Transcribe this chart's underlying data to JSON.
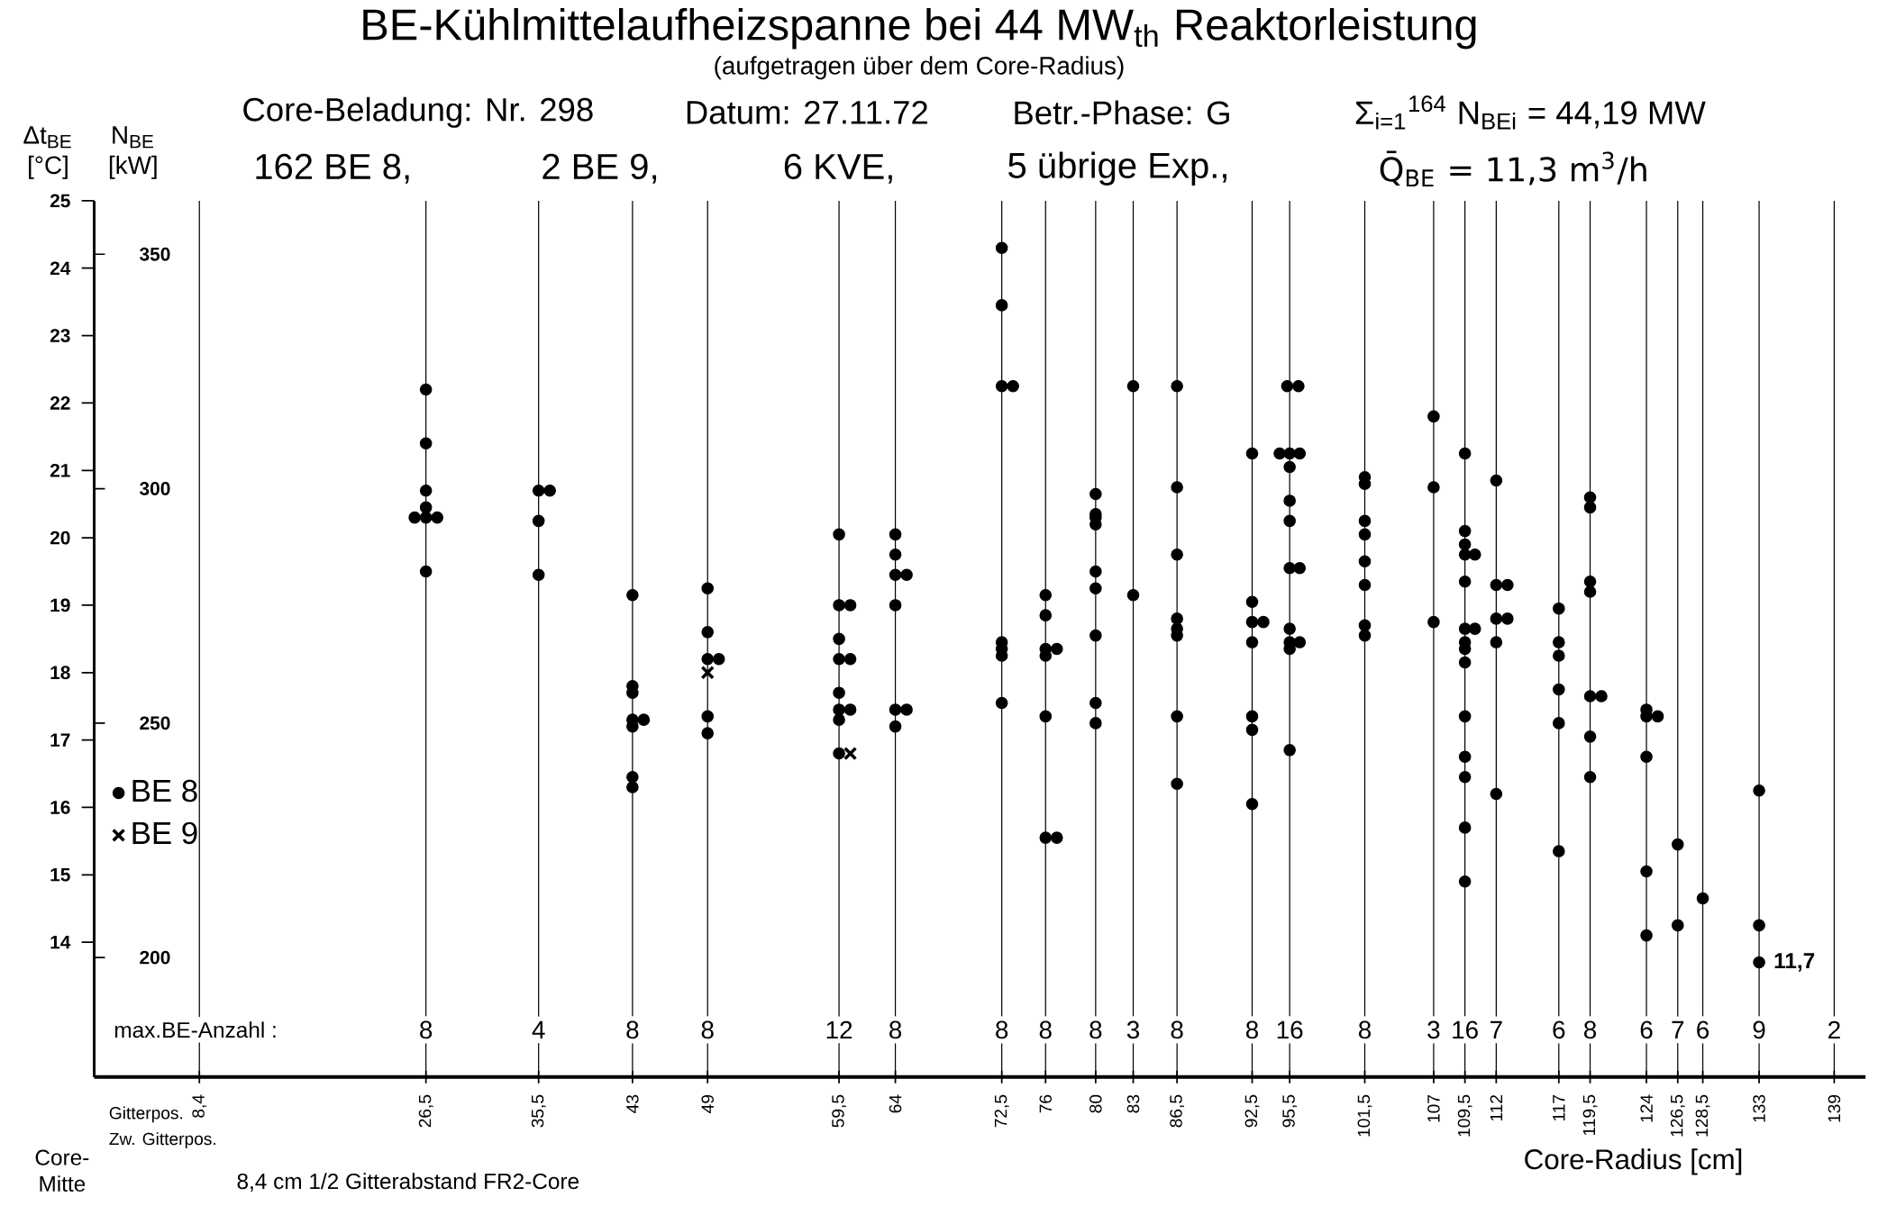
{
  "chart_data": {
    "type": "scatter",
    "title": "BE-Kühlmittelaufheizspanne bei 44 MW$_{th}$ Reaktorleistung",
    "subtitle": "(aufgetragen über dem Core-Radius)",
    "xlabel": "Core-Radius [cm]",
    "ylabel": "Δt$_{BE}$ [°C]",
    "y2label": "N$_{BE}$ [kW]",
    "xlim": [
      0,
      141.5
    ],
    "ylim": [
      12,
      25
    ],
    "y2lim": [
      174.5,
      361.4
    ],
    "xticks": [
      {
        "value": 8.4,
        "label": "8,4"
      },
      {
        "value": 26.5,
        "label": "26,5"
      },
      {
        "value": 35.5,
        "label": "35,5"
      },
      43,
      49,
      {
        "value": 59.5,
        "label": "59,5"
      },
      64,
      {
        "value": 72.5,
        "label": "72,5"
      },
      76,
      80,
      83,
      {
        "value": 86.5,
        "label": "86,5"
      },
      {
        "value": 92.5,
        "label": "92,5"
      },
      {
        "value": 95.5,
        "label": "95,5"
      },
      {
        "value": 101.5,
        "label": "101,5"
      },
      107,
      {
        "value": 109.5,
        "label": "109,5"
      },
      112,
      117,
      {
        "value": 119.5,
        "label": "119,5"
      },
      124,
      {
        "value": 126.5,
        "label": "126,5"
      },
      {
        "value": 128.5,
        "label": "128,5"
      },
      133,
      139
    ],
    "yticks": [
      14,
      15,
      16,
      17,
      18,
      19,
      20,
      21,
      22,
      23,
      24,
      25
    ],
    "y2ticks": [
      200,
      250,
      300,
      350
    ],
    "grid": "x",
    "legend": "left",
    "series": [
      {
        "name": "BE 8",
        "color": "#000000",
        "marker": "circle",
        "x": [
          26.5,
          26.5,
          26.5,
          26.5,
          25.6,
          26.5,
          27.4,
          26.5,
          35.5,
          36.4,
          35.5,
          35.5,
          43,
          43,
          43,
          43,
          43.9,
          43,
          43,
          43,
          49,
          49,
          49,
          49.9,
          49,
          49,
          59.5,
          59.5,
          60.4,
          59.5,
          59.5,
          60.4,
          59.5,
          59.5,
          60.4,
          59.5,
          59.5,
          64,
          64,
          64,
          64.9,
          64,
          64,
          64.9,
          64,
          72.5,
          72.5,
          72.5,
          73.4,
          72.5,
          72.5,
          72.5,
          72.5,
          76,
          76,
          76,
          76.9,
          76,
          76,
          76,
          76.9,
          80,
          80,
          80,
          80,
          80,
          80,
          80,
          80,
          80,
          83,
          83,
          86.5,
          86.5,
          86.5,
          86.5,
          86.5,
          86.5,
          86.5,
          86.5,
          92.5,
          92.5,
          92.5,
          93.4,
          92.5,
          92.5,
          92.5,
          92.5,
          95.3,
          96.2,
          94.7,
          95.5,
          96.3,
          95.5,
          95.5,
          95.5,
          95.5,
          96.3,
          95.5,
          95.5,
          96.3,
          95.5,
          95.5,
          101.5,
          101.5,
          101.5,
          101.5,
          101.5,
          101.5,
          101.5,
          101.5,
          107,
          107,
          107,
          109.5,
          109.5,
          109.5,
          109.5,
          110.3,
          109.5,
          109.5,
          110.3,
          109.5,
          109.5,
          109.5,
          109.5,
          109.5,
          109.5,
          109.5,
          109.5,
          112,
          112,
          112.9,
          112,
          112.9,
          112,
          112,
          117,
          117,
          117,
          117,
          117,
          117,
          119.5,
          119.5,
          119.5,
          119.5,
          119.5,
          120.4,
          119.5,
          119.5,
          124,
          124,
          124.9,
          124,
          124,
          124,
          126.5,
          126.5,
          128.5,
          133,
          133,
          133
        ],
        "values": [
          22.2,
          21.4,
          20.7,
          20.45,
          20.3,
          20.3,
          20.3,
          19.5,
          20.7,
          20.7,
          20.25,
          19.45,
          19.15,
          17.8,
          17.7,
          17.3,
          17.3,
          17.2,
          16.45,
          16.3,
          19.25,
          18.6,
          18.2,
          18.2,
          17.35,
          17.1,
          20.05,
          19.0,
          19.0,
          18.5,
          18.2,
          18.2,
          17.7,
          17.45,
          17.45,
          17.3,
          16.8,
          20.05,
          19.75,
          19.45,
          19.45,
          19.0,
          17.45,
          17.45,
          17.2,
          24.3,
          23.45,
          22.25,
          22.25,
          18.45,
          18.35,
          18.25,
          17.55,
          19.15,
          18.85,
          18.35,
          18.35,
          18.25,
          17.35,
          15.55,
          15.55,
          20.65,
          20.35,
          20.3,
          20.2,
          19.5,
          19.25,
          18.55,
          17.55,
          17.25,
          22.25,
          19.15,
          22.25,
          20.75,
          19.75,
          18.8,
          18.65,
          18.55,
          17.35,
          16.35,
          21.25,
          19.05,
          18.75,
          18.75,
          18.45,
          17.35,
          17.15,
          16.05,
          22.25,
          22.25,
          21.25,
          21.25,
          21.25,
          21.05,
          20.55,
          20.25,
          19.55,
          19.55,
          18.65,
          18.45,
          18.45,
          18.35,
          16.85,
          20.9,
          20.8,
          20.25,
          20.05,
          19.65,
          19.3,
          18.7,
          18.55,
          21.8,
          20.75,
          18.75,
          21.25,
          20.1,
          19.9,
          19.75,
          19.75,
          19.35,
          18.65,
          18.65,
          18.45,
          18.35,
          18.15,
          17.35,
          16.75,
          16.45,
          15.7,
          14.9,
          20.85,
          19.3,
          19.3,
          18.8,
          18.8,
          18.45,
          16.2,
          18.95,
          18.45,
          18.25,
          17.75,
          17.25,
          15.35,
          20.6,
          20.45,
          19.35,
          19.2,
          17.65,
          17.65,
          17.05,
          16.45,
          17.45,
          17.35,
          17.35,
          16.75,
          15.05,
          14.1,
          15.45,
          14.25,
          14.65,
          16.25,
          14.25,
          13.7
        ]
      },
      {
        "name": "BE 9",
        "color": "#000000",
        "marker": "cross",
        "x": [
          49,
          60.4
        ],
        "values": [
          18.0,
          16.8
        ]
      }
    ],
    "annotations": [
      "Core-Beladung: Nr. 298",
      "Datum: 27.11.72",
      "Betr.-Phase: G",
      "162 BE 8,",
      "2 BE 9,",
      "6 KVE,",
      "5 übrige Exp.,",
      "Σ$_{i=1}$$^{164}$ N$_{BEi}$ = 44,19 MW",
      "Q̄$_{BE}$ = 11,3 m$^{3}$/h",
      "max.BE-Anzahl :",
      "Gitterpos.",
      "Zw. Gitterpos.",
      "Core-Mitte",
      "8,4 cm 1/2 Gitterabstand FR2-Core",
      {
        "text": "8",
        "x": 26.5,
        "y": 12.7
      },
      {
        "text": "4",
        "x": 35.5,
        "y": 12.7
      },
      {
        "text": "8",
        "x": 43,
        "y": 12.7
      },
      {
        "text": "8",
        "x": 49,
        "y": 12.7
      },
      {
        "text": "12",
        "x": 59.5,
        "y": 12.7
      },
      {
        "text": "8",
        "x": 64,
        "y": 12.7
      },
      {
        "text": "8",
        "x": 72.5,
        "y": 12.7
      },
      {
        "text": "8",
        "x": 76,
        "y": 12.7
      },
      {
        "text": "8",
        "x": 80,
        "y": 12.7
      },
      {
        "text": "3",
        "x": 83,
        "y": 12.7
      },
      {
        "text": "8",
        "x": 86.5,
        "y": 12.7
      },
      {
        "text": "8",
        "x": 92.5,
        "y": 12.7
      },
      {
        "text": "16",
        "x": 95.5,
        "y": 12.7
      },
      {
        "text": "8",
        "x": 101.5,
        "y": 12.7
      },
      {
        "text": "3",
        "x": 107,
        "y": 12.7
      },
      {
        "text": "16",
        "x": 109.5,
        "y": 12.7
      },
      {
        "text": "7",
        "x": 112,
        "y": 12.7
      },
      {
        "text": "6",
        "x": 117,
        "y": 12.7
      },
      {
        "text": "8",
        "x": 119.5,
        "y": 12.7
      },
      {
        "text": "6",
        "x": 124,
        "y": 12.7
      },
      {
        "text": "7",
        "x": 126.5,
        "y": 12.7
      },
      {
        "text": "6",
        "x": 128.5,
        "y": 12.7
      },
      {
        "text": "9",
        "x": 133,
        "y": 12.7
      },
      {
        "text": "2",
        "x": 139,
        "y": 12.7
      },
      {
        "text": "11,7",
        "x": 133,
        "y": 13.7
      }
    ]
  }
}
